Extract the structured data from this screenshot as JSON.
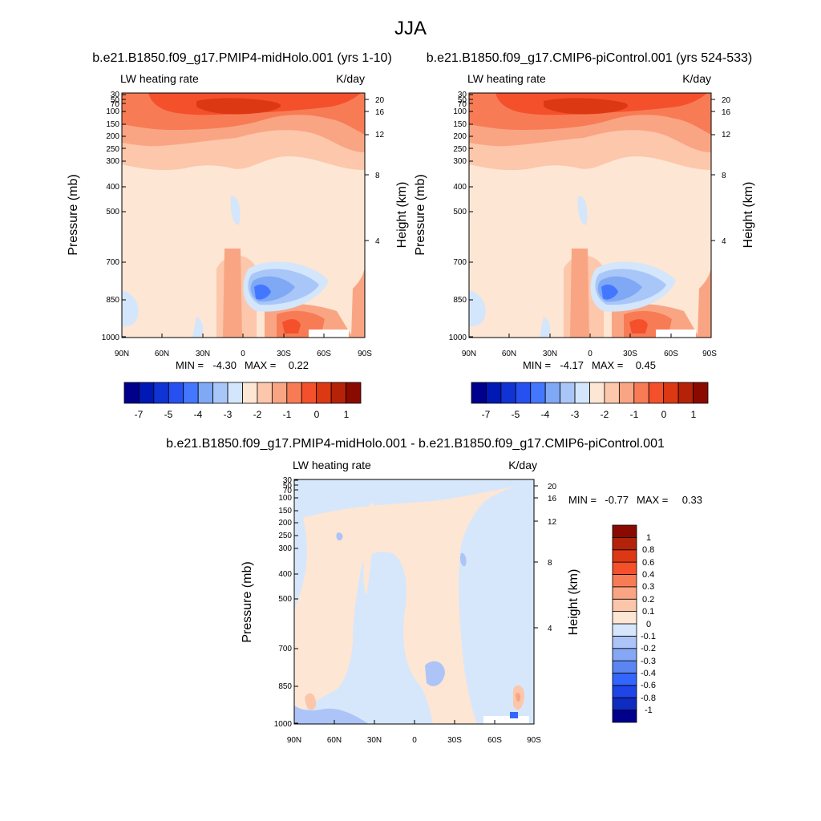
{
  "main_title": "JJA",
  "colorbar_colors_top": [
    "#00008c",
    "#0019b4",
    "#1033d4",
    "#2650f0",
    "#4477ff",
    "#7fa8f5",
    "#a9c6f8",
    "#d3e6fb",
    "#fde6d4",
    "#fcc7ab",
    "#f9a583",
    "#f77c56",
    "#f5502c",
    "#dd3814",
    "#b52208",
    "#8a0a00"
  ],
  "colorbar_colors_diff": [
    "#00008c",
    "#0f2cc0",
    "#1f45e6",
    "#3366ff",
    "#5b86f2",
    "#86a7f5",
    "#acc4f7",
    "#d6e7fb",
    "#fde6d4",
    "#fbc6aa",
    "#f9a583",
    "#f77c56",
    "#f5502c",
    "#dc3815",
    "#b32309",
    "#8a0a00"
  ],
  "chart_data": [
    {
      "type": "heatmap",
      "title": "b.e21.B1850.f09_g17.PMIP4-midHolo.001 (yrs 1-10)",
      "left_string": "LW heating rate",
      "right_string": "K/day",
      "ylabel": "Pressure (mb)",
      "ylabel_right": "Height (km)",
      "x_ticks": [
        "90N",
        "60N",
        "30N",
        "0",
        "30S",
        "60S",
        "90S"
      ],
      "y_ticks": [
        "30",
        "50",
        "70",
        "100",
        "150",
        "200",
        "250",
        "300",
        "400",
        "500",
        "700",
        "850",
        "1000"
      ],
      "y_ticks_right": [
        "20",
        "16",
        "12",
        "8",
        "4"
      ],
      "min_label": "MIN =",
      "min_value": "-4.30",
      "max_label": "MAX =",
      "max_value": "0.22",
      "colorbar_labels": [
        "-7",
        "-5",
        "-4",
        "-3",
        "-2",
        "-1",
        "0",
        "1"
      ]
    },
    {
      "type": "heatmap",
      "title": "b.e21.B1850.f09_g17.CMIP6-piControl.001 (yrs 524-533)",
      "left_string": "LW heating rate",
      "right_string": "K/day",
      "ylabel": "Pressure (mb)",
      "ylabel_right": "Height (km)",
      "x_ticks": [
        "90N",
        "60N",
        "30N",
        "0",
        "30S",
        "60S",
        "90S"
      ],
      "y_ticks": [
        "30",
        "50",
        "70",
        "100",
        "150",
        "200",
        "250",
        "300",
        "400",
        "500",
        "700",
        "850",
        "1000"
      ],
      "y_ticks_right": [
        "20",
        "16",
        "12",
        "8",
        "4"
      ],
      "min_label": "MIN =",
      "min_value": "-4.17",
      "max_label": "MAX =",
      "max_value": "0.45",
      "colorbar_labels": [
        "-7",
        "-5",
        "-4",
        "-3",
        "-2",
        "-1",
        "0",
        "1"
      ]
    },
    {
      "type": "heatmap",
      "title": "b.e21.B1850.f09_g17.PMIP4-midHolo.001 - b.e21.B1850.f09_g17.CMIP6-piControl.001",
      "left_string": "LW heating rate",
      "right_string": "K/day",
      "ylabel": "Pressure (mb)",
      "ylabel_right": "Height (km)",
      "x_ticks": [
        "90N",
        "60N",
        "30N",
        "0",
        "30S",
        "60S",
        "90S"
      ],
      "y_ticks": [
        "30",
        "50",
        "70",
        "100",
        "150",
        "200",
        "250",
        "300",
        "400",
        "500",
        "700",
        "850",
        "1000"
      ],
      "y_ticks_right": [
        "20",
        "16",
        "12",
        "8",
        "4"
      ],
      "min_label": "MIN =",
      "min_value": "-0.77",
      "max_label": "MAX =",
      "max_value": "0.33",
      "colorbar_labels": [
        "1",
        "0.8",
        "0.6",
        "0.4",
        "0.3",
        "0.2",
        "0.1",
        "0",
        "-0.1",
        "-0.2",
        "-0.3",
        "-0.4",
        "-0.6",
        "-0.8",
        "-1"
      ]
    }
  ]
}
